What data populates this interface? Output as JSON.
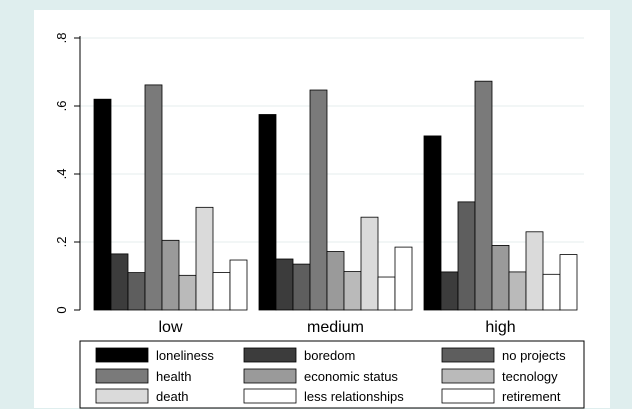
{
  "chart_data": {
    "type": "bar",
    "categories": [
      "low",
      "medium",
      "high"
    ],
    "series": [
      {
        "name": "loneliness",
        "color": "#000000",
        "values": [
          0.62,
          0.575,
          0.512
        ]
      },
      {
        "name": "boredom",
        "color": "#3c3c3c",
        "values": [
          0.165,
          0.15,
          0.112
        ]
      },
      {
        "name": "no projects",
        "color": "#5e5e5e",
        "values": [
          0.11,
          0.135,
          0.318
        ]
      },
      {
        "name": "health",
        "color": "#7a7a7a",
        "values": [
          0.662,
          0.647,
          0.673
        ]
      },
      {
        "name": "economic status",
        "color": "#9a9a9a",
        "values": [
          0.205,
          0.172,
          0.19
        ]
      },
      {
        "name": "tecnology",
        "color": "#bababa",
        "values": [
          0.102,
          0.113,
          0.112
        ]
      },
      {
        "name": "death",
        "color": "#dadada",
        "values": [
          0.302,
          0.273,
          0.23
        ]
      },
      {
        "name": "less relationships",
        "color": "#ffffff",
        "values": [
          0.11,
          0.097,
          0.105
        ]
      },
      {
        "name": "retirement",
        "color": "#ffffff",
        "values": [
          0.147,
          0.185,
          0.163
        ]
      }
    ],
    "yticks": [
      {
        "value": 0,
        "label": "0"
      },
      {
        "value": 0.2,
        "label": ".2"
      },
      {
        "value": 0.4,
        "label": ".4"
      },
      {
        "value": 0.6,
        "label": ".6"
      },
      {
        "value": 0.8,
        "label": ".8"
      }
    ],
    "ylim": [
      0,
      0.8
    ],
    "grid": true,
    "legend_position": "bottom",
    "title": "",
    "xlabel": "",
    "ylabel": ""
  }
}
